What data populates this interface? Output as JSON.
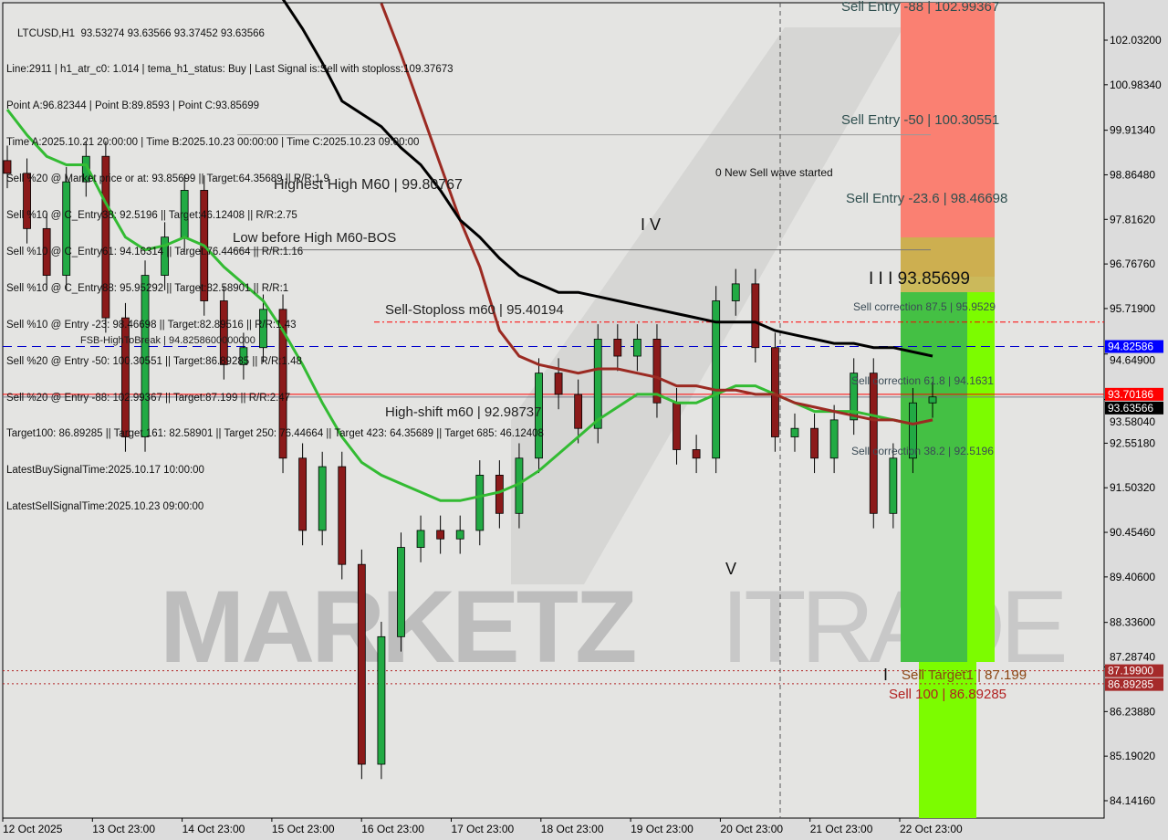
{
  "header": {
    "symbol_line": "LTCUSD,H1  93.53274 93.63566 93.37452 93.63566",
    "info_lines": [
      "Line:2911 | h1_atr_c0: 1.014 | tema_h1_status: Buy | Last Signal is:Sell with stoploss:109.37673",
      "Point A:96.82344 | Point B:89.8593 | Point C:93.85699",
      "Time A:2025.10.21 20:00:00 | Time B:2025.10.23 00:00:00 | Time C:2025.10.23 09:00:00",
      "Sell %20 @ Market price or at: 93.85699 || Target:64.35689 || R/R:1.9",
      "Sell %10 @ C_Entry38: 92.5196 || Target:46.12408 || R/R:2.75",
      "Sell %10 @ C_Entry61: 94.16314 || Target:76.44664 || R/R:1.16",
      "Sell %10 @ C_Entry88: 95.95292 || Target:82.58901 || R/R:1",
      "Sell %10 @ Entry -23: 98.46698 || Target:82.89516 || R/R:1.43",
      "Sell %20 @ Entry -50: 100.30551 || Target:86.89285 || R/R:1.48",
      "Sell %20 @ Entry -88: 102.99367 || Target:87.199 || R/R:2.47",
      "Target100: 86.89285 || Target 161: 82.58901 || Target 250: 76.44664 || Target 423: 64.35689 || Target 685: 46.12408",
      "LatestBuySignalTime:2025.10.17 10:00:00",
      "LatestSellSignalTime:2025.10.23 09:00:00"
    ]
  },
  "annotations": {
    "highest_high": "Highest High  M60 | 99.80767",
    "low_before_high": "Low before High  M60-BOS",
    "sell_stoploss": "Sell-Stoploss m60 | 95.40194",
    "fsb": "FSB-HighToBreak | 94.8258600000000",
    "high_shift": "High-shift m60 | 92.98737",
    "new_wave": "0 New Sell wave started",
    "wave_iv": "I V",
    "wave_v": "V",
    "wave_i": "I",
    "wave_iii": "I I I 93.85699",
    "corr_875": "Sell correction 87.5 | 95.9529",
    "corr_618": "Sell correction 61.8 | 94.1631",
    "corr_382": "Sell correction 38.2 | 92.5196",
    "entry_88": "Sell Entry -88 | 102.99367",
    "entry_50": "Sell Entry -50 | 100.30551",
    "entry_236": "Sell Entry -23.6 | 98.46698",
    "target1": "Sell Target1 | 87.199",
    "sell100": "Sell 100 | 86.89285"
  },
  "watermark": "MARKETZITRADE",
  "price_tags": {
    "fsb": "94.82586",
    "red": "93.70186",
    "current": "93.63566",
    "target1": "87.19900",
    "sell100": "86.89285"
  },
  "colors": {
    "background": "#dcdcdc",
    "bull": "#22aa44",
    "bear": "#8b1a1a",
    "ma_black": "#000000",
    "ma_brown": "#9b2a22",
    "ma_green": "#33bb33",
    "stoploss": "#ff0000",
    "fsb": "#0000cc",
    "zone_red": "#fa8072",
    "zone_green": "#44cc44",
    "zone_lime": "#7cfc00"
  },
  "chart_data": {
    "type": "candlestick",
    "symbol": "LTCUSD",
    "timeframe": "H1",
    "ylim": [
      83.6,
      103.0
    ],
    "y_ticks": [
      102.032,
      100.9834,
      99.9134,
      98.8648,
      97.8162,
      96.7676,
      95.719,
      94.649,
      93.5804,
      92.5518,
      91.5032,
      90.4546,
      89.406,
      88.336,
      87.2874,
      86.2388,
      85.1902,
      84.1416
    ],
    "x_ticks": [
      "12 Oct 2025",
      "13 Oct 23:00",
      "14 Oct 23:00",
      "15 Oct 23:00",
      "16 Oct 23:00",
      "17 Oct 23:00",
      "18 Oct 23:00",
      "19 Oct 23:00",
      "20 Oct 23:00",
      "21 Oct 23:00",
      "22 Oct 23:00"
    ],
    "close": [
      98.9,
      97.6,
      96.5,
      98.7,
      99.3,
      95.5,
      92.7,
      96.5,
      97.4,
      98.5,
      95.9,
      94.4,
      94.8,
      95.7,
      92.2,
      90.5,
      92.0,
      89.7,
      85.0,
      88.0,
      90.1,
      90.5,
      90.3,
      90.5,
      91.8,
      90.9,
      92.2,
      94.2,
      93.7,
      92.9,
      95.0,
      94.6,
      95.0,
      93.5,
      92.4,
      92.2,
      95.9,
      96.3,
      94.8,
      92.7,
      92.9,
      92.2,
      93.1,
      94.2,
      90.9,
      92.2,
      93.5,
      93.64
    ],
    "series": [
      {
        "key": "green",
        "values": [
          100.4,
          99.8,
          99.3,
          99.1,
          99.1,
          98.2,
          97.4,
          97.1,
          97.2,
          97.4,
          97.2,
          96.7,
          96.3,
          95.9,
          95.2,
          94.4,
          93.5,
          92.7,
          92.1,
          91.8,
          91.6,
          91.4,
          91.2,
          91.2,
          91.3,
          91.4,
          91.6,
          91.9,
          92.3,
          92.7,
          93.1,
          93.4,
          93.7,
          93.7,
          93.5,
          93.5,
          93.7,
          93.9,
          93.9,
          93.7,
          93.5,
          93.3,
          93.3,
          93.3,
          93.2,
          93.1,
          93.0,
          93.1
        ]
      },
      {
        "key": "brown",
        "values": [
          null,
          null,
          null,
          null,
          null,
          null,
          null,
          null,
          null,
          null,
          null,
          null,
          null,
          null,
          null,
          null,
          null,
          null,
          null,
          102.9,
          101.7,
          100.4,
          99.1,
          97.8,
          96.7,
          95.2,
          94.6,
          94.4,
          94.3,
          94.2,
          94.3,
          94.3,
          94.2,
          94.1,
          93.9,
          93.9,
          93.8,
          93.8,
          93.7,
          93.7,
          93.5,
          93.4,
          93.3,
          93.2,
          93.1,
          93.1,
          93.0,
          93.1
        ]
      },
      {
        "key": "black",
        "values": [
          null,
          null,
          null,
          null,
          null,
          null,
          null,
          null,
          null,
          null,
          null,
          null,
          null,
          null,
          103.0,
          102.3,
          101.5,
          100.6,
          100.3,
          100.0,
          99.5,
          99.1,
          98.5,
          97.8,
          97.4,
          96.9,
          96.5,
          96.3,
          96.1,
          96.1,
          96.0,
          95.9,
          95.8,
          95.7,
          95.6,
          95.5,
          95.4,
          95.4,
          95.4,
          95.2,
          95.1,
          95.0,
          94.9,
          94.9,
          94.8,
          94.8,
          94.7,
          94.6
        ]
      }
    ],
    "levels": [
      {
        "key": "highest_high",
        "value": 99.80767
      },
      {
        "key": "low_before_high",
        "value": 97.1
      },
      {
        "key": "sell_stoploss",
        "value": 95.40194
      },
      {
        "key": "fsb",
        "value": 94.82586
      },
      {
        "key": "red",
        "value": 93.70186
      },
      {
        "key": "current",
        "value": 93.63566
      },
      {
        "key": "target1",
        "value": 87.199
      },
      {
        "key": "sell100",
        "value": 86.89285
      }
    ]
  }
}
